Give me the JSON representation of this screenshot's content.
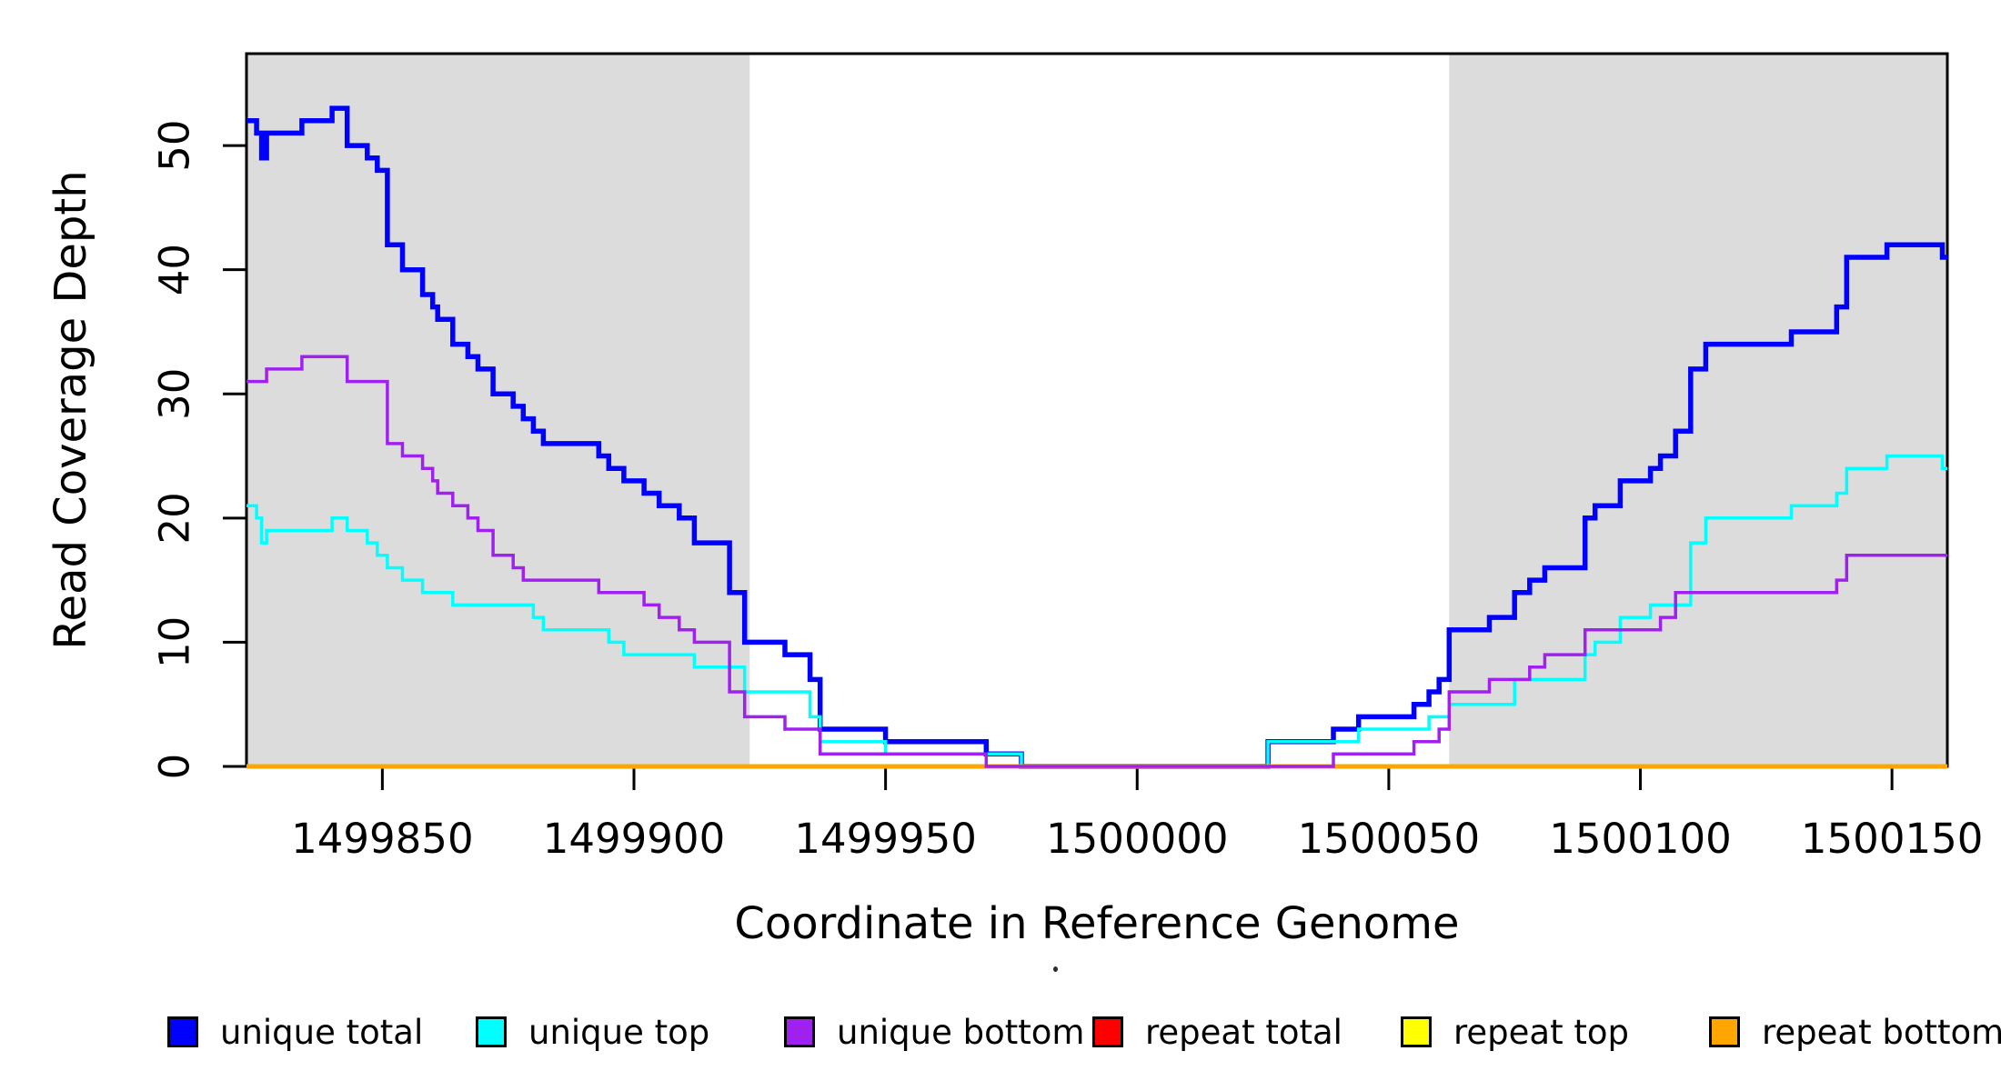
{
  "figure": {
    "background": "#ffffff",
    "plot_background": "#ffffff"
  },
  "legend": {
    "items": [
      {
        "label": "unique total",
        "color": "#0000FF"
      },
      {
        "label": "unique top",
        "color": "#00FFFF"
      },
      {
        "label": "unique bottom",
        "color": "#A020F0"
      },
      {
        "label": "repeat total",
        "color": "#FF0000"
      },
      {
        "label": "repeat top",
        "color": "#FFFF00"
      },
      {
        "label": "repeat bottom",
        "color": "#FFA500"
      }
    ]
  },
  "chart_data": {
    "type": "line",
    "step": "after",
    "title": "",
    "xlabel": "Coordinate in Reference Genome",
    "ylabel": "Read Coverage Depth",
    "xlim": [
      1499823,
      1500161
    ],
    "ylim": [
      0,
      57.4
    ],
    "xticks": [
      1499850,
      1499900,
      1499950,
      1500000,
      1500050,
      1500100,
      1500150
    ],
    "yticks": [
      0,
      10,
      20,
      30,
      40,
      50
    ],
    "grid": false,
    "legend_position": "bottom",
    "axis_color": "#000000",
    "shaded_regions": [
      {
        "x0": 1499823,
        "x1": 1499923,
        "color": "#DCDCDC"
      },
      {
        "x0": 1500062,
        "x1": 1500161,
        "color": "#DCDCDC"
      }
    ],
    "draw_order": [
      "repeat total",
      "repeat top",
      "unique total",
      "unique top",
      "repeat bottom",
      "unique bottom"
    ],
    "series": [
      {
        "name": "unique total",
        "color": "#0000FF",
        "width": 5.5,
        "points": [
          [
            1499823,
            52
          ],
          [
            1499825,
            51
          ],
          [
            1499826,
            49
          ],
          [
            1499827,
            51
          ],
          [
            1499834,
            52
          ],
          [
            1499840,
            53
          ],
          [
            1499843,
            50
          ],
          [
            1499847,
            49
          ],
          [
            1499849,
            48
          ],
          [
            1499851,
            42
          ],
          [
            1499854,
            40
          ],
          [
            1499858,
            38
          ],
          [
            1499860,
            37
          ],
          [
            1499861,
            36
          ],
          [
            1499864,
            34
          ],
          [
            1499867,
            33
          ],
          [
            1499869,
            32
          ],
          [
            1499872,
            30
          ],
          [
            1499876,
            29
          ],
          [
            1499878,
            28
          ],
          [
            1499880,
            27
          ],
          [
            1499882,
            26
          ],
          [
            1499893,
            25
          ],
          [
            1499895,
            24
          ],
          [
            1499898,
            23
          ],
          [
            1499902,
            22
          ],
          [
            1499905,
            21
          ],
          [
            1499909,
            20
          ],
          [
            1499912,
            18
          ],
          [
            1499919,
            14
          ],
          [
            1499922,
            10
          ],
          [
            1499930,
            9
          ],
          [
            1499935,
            7
          ],
          [
            1499937,
            3
          ],
          [
            1499950,
            2
          ],
          [
            1499970,
            1
          ],
          [
            1499977,
            0
          ],
          [
            1500026,
            2
          ],
          [
            1500039,
            3
          ],
          [
            1500044,
            4
          ],
          [
            1500055,
            5
          ],
          [
            1500058,
            6
          ],
          [
            1500060,
            7
          ],
          [
            1500062,
            11
          ],
          [
            1500070,
            12
          ],
          [
            1500075,
            14
          ],
          [
            1500078,
            15
          ],
          [
            1500081,
            16
          ],
          [
            1500089,
            20
          ],
          [
            1500091,
            21
          ],
          [
            1500096,
            23
          ],
          [
            1500102,
            24
          ],
          [
            1500104,
            25
          ],
          [
            1500107,
            27
          ],
          [
            1500110,
            32
          ],
          [
            1500113,
            34
          ],
          [
            1500130,
            35
          ],
          [
            1500139,
            37
          ],
          [
            1500141,
            41
          ],
          [
            1500149,
            42
          ],
          [
            1500160,
            41
          ]
        ]
      },
      {
        "name": "unique top",
        "color": "#00FFFF",
        "width": 3.5,
        "points": [
          [
            1499823,
            21
          ],
          [
            1499825,
            20
          ],
          [
            1499826,
            18
          ],
          [
            1499827,
            19
          ],
          [
            1499840,
            20
          ],
          [
            1499843,
            19
          ],
          [
            1499847,
            18
          ],
          [
            1499849,
            17
          ],
          [
            1499851,
            16
          ],
          [
            1499854,
            15
          ],
          [
            1499858,
            14
          ],
          [
            1499864,
            13
          ],
          [
            1499880,
            12
          ],
          [
            1499882,
            11
          ],
          [
            1499895,
            10
          ],
          [
            1499898,
            9
          ],
          [
            1499912,
            8
          ],
          [
            1499922,
            6
          ],
          [
            1499935,
            4
          ],
          [
            1499937,
            2
          ],
          [
            1499950,
            1
          ],
          [
            1499977,
            0
          ],
          [
            1500026,
            2
          ],
          [
            1500044,
            3
          ],
          [
            1500058,
            4
          ],
          [
            1500062,
            5
          ],
          [
            1500075,
            7
          ],
          [
            1500089,
            9
          ],
          [
            1500091,
            10
          ],
          [
            1500096,
            12
          ],
          [
            1500102,
            13
          ],
          [
            1500110,
            18
          ],
          [
            1500113,
            20
          ],
          [
            1500130,
            21
          ],
          [
            1500139,
            22
          ],
          [
            1500141,
            24
          ],
          [
            1500149,
            25
          ],
          [
            1500160,
            24
          ]
        ]
      },
      {
        "name": "unique bottom",
        "color": "#A020F0",
        "width": 3.5,
        "points": [
          [
            1499823,
            31
          ],
          [
            1499827,
            32
          ],
          [
            1499834,
            33
          ],
          [
            1499843,
            31
          ],
          [
            1499851,
            26
          ],
          [
            1499854,
            25
          ],
          [
            1499858,
            24
          ],
          [
            1499860,
            23
          ],
          [
            1499861,
            22
          ],
          [
            1499864,
            21
          ],
          [
            1499867,
            20
          ],
          [
            1499869,
            19
          ],
          [
            1499872,
            17
          ],
          [
            1499876,
            16
          ],
          [
            1499878,
            15
          ],
          [
            1499893,
            14
          ],
          [
            1499902,
            13
          ],
          [
            1499905,
            12
          ],
          [
            1499909,
            11
          ],
          [
            1499912,
            10
          ],
          [
            1499919,
            6
          ],
          [
            1499922,
            4
          ],
          [
            1499930,
            3
          ],
          [
            1499937,
            1
          ],
          [
            1499970,
            0
          ],
          [
            1500039,
            1
          ],
          [
            1500055,
            2
          ],
          [
            1500060,
            3
          ],
          [
            1500062,
            6
          ],
          [
            1500070,
            7
          ],
          [
            1500078,
            8
          ],
          [
            1500081,
            9
          ],
          [
            1500089,
            11
          ],
          [
            1500104,
            12
          ],
          [
            1500107,
            14
          ],
          [
            1500139,
            15
          ],
          [
            1500141,
            17
          ]
        ]
      },
      {
        "name": "repeat total",
        "color": "#FF0000",
        "width": 4,
        "points": [
          [
            1499823,
            0
          ]
        ]
      },
      {
        "name": "repeat top",
        "color": "#FFFF00",
        "width": 4,
        "points": [
          [
            1499823,
            0
          ]
        ]
      },
      {
        "name": "repeat bottom",
        "color": "#FFA500",
        "width": 5,
        "points": [
          [
            1499823,
            0
          ]
        ]
      }
    ]
  }
}
